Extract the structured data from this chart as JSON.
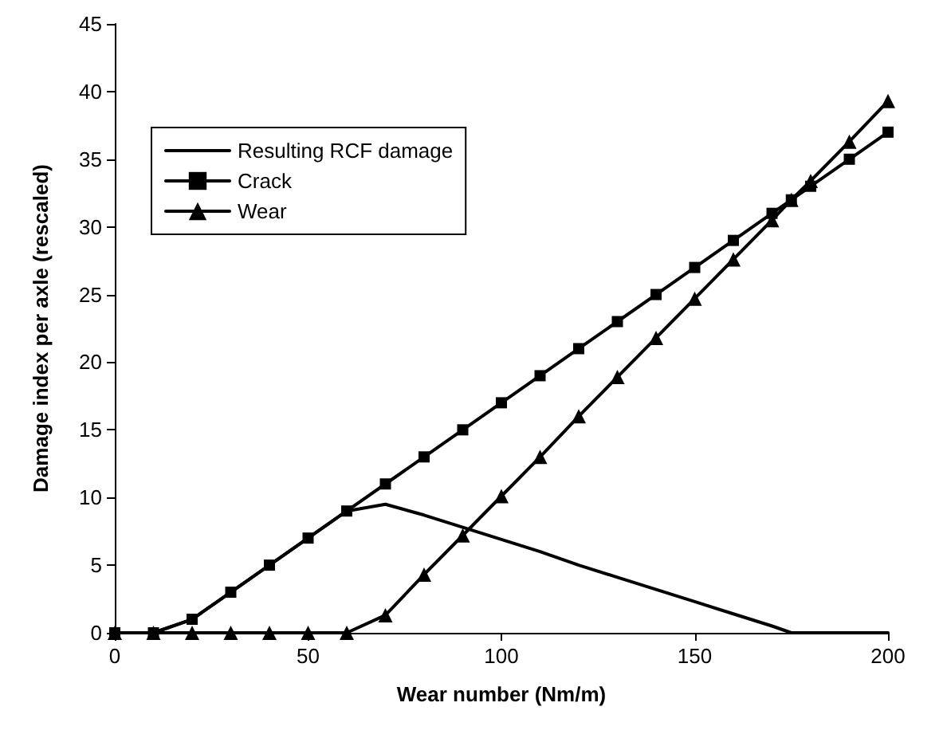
{
  "chart_data": {
    "type": "line",
    "xlabel": "Wear number (Nm/m)",
    "ylabel": "Damage index per axle (rescaled)",
    "xlim": [
      0,
      200
    ],
    "xticks": [
      0,
      50,
      100,
      150,
      200
    ],
    "ylim": [
      0,
      45
    ],
    "yticks": [
      0,
      5,
      10,
      15,
      20,
      25,
      30,
      35,
      40,
      45
    ],
    "grid": false,
    "legend": "top left",
    "line_style": "solid",
    "series": [
      {
        "name": "Resulting RCF damage",
        "color": "#000000",
        "marker": "none",
        "x": [
          0,
          10,
          20,
          30,
          40,
          50,
          60,
          70,
          80,
          90,
          100,
          110,
          120,
          130,
          140,
          150,
          160,
          170,
          175,
          180,
          190,
          200
        ],
        "values": [
          0,
          0,
          1,
          3,
          5,
          7,
          9,
          9.5,
          8.7,
          7.8,
          6.9,
          6,
          5,
          4.1,
          3.2,
          2.3,
          1.4,
          0.5,
          0,
          0,
          0,
          0
        ]
      },
      {
        "name": "Crack",
        "color": "#000000",
        "marker": "square",
        "x": [
          0,
          10,
          20,
          30,
          40,
          50,
          60,
          70,
          80,
          90,
          100,
          110,
          120,
          130,
          140,
          150,
          160,
          170,
          175,
          180,
          190,
          200
        ],
        "values": [
          0,
          0,
          1,
          3,
          5,
          7,
          9,
          11,
          13,
          15,
          17,
          19,
          21,
          23,
          25,
          27,
          29,
          31,
          32,
          33,
          35,
          37
        ]
      },
      {
        "name": "Wear",
        "color": "#000000",
        "marker": "triangle",
        "x": [
          0,
          10,
          20,
          30,
          40,
          50,
          60,
          70,
          80,
          90,
          100,
          110,
          120,
          130,
          140,
          150,
          160,
          170,
          175,
          180,
          190,
          200
        ],
        "values": [
          0,
          0,
          0,
          0,
          0,
          0,
          0,
          1.3,
          4.3,
          7.2,
          10.1,
          13,
          16,
          18.9,
          21.8,
          24.7,
          27.6,
          30.5,
          32,
          33.4,
          36.3,
          39.3
        ]
      }
    ]
  }
}
